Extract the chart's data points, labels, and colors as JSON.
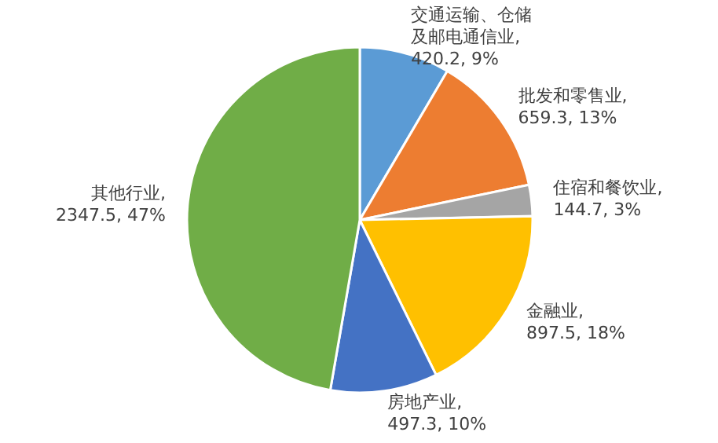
{
  "chart_data": {
    "type": "pie",
    "categories": [
      "交通运输、仓储及邮电通信业",
      "批发和零售业",
      "住宿和餐饮业",
      "金融业",
      "房地产业",
      "其他行业"
    ],
    "values": [
      420.2,
      659.3,
      144.7,
      897.5,
      497.3,
      2347.5
    ],
    "value_labels": [
      ", 420.2, 9%",
      ", 659.3, 13%",
      ", 144.7, 3%",
      ", 897.5, 18%",
      ", 497.3, 10%",
      ", 2347.5, 47%"
    ],
    "colors": [
      "#5b9bd5",
      "#ed7d31",
      "#a5a5a5",
      "#ffc000",
      "#4472c4",
      "#70ad47"
    ]
  }
}
